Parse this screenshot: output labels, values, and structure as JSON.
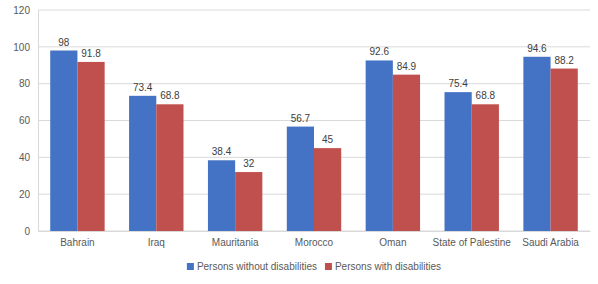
{
  "chart_data": {
    "type": "bar",
    "categories": [
      "Bahrain",
      "Iraq",
      "Mauritania",
      "Morocco",
      "Oman",
      "State of Palestine",
      "Saudi Arabia"
    ],
    "series": [
      {
        "name": "Persons without disabilities",
        "color": "#4472c4",
        "values": [
          98,
          73.4,
          38.4,
          56.7,
          92.6,
          75.4,
          94.6
        ]
      },
      {
        "name": "Persons with disabilities",
        "color": "#c0504d",
        "values": [
          91.8,
          68.8,
          32,
          45,
          84.9,
          68.8,
          88.2
        ]
      }
    ],
    "ylim": [
      0,
      120
    ],
    "yticks": [
      0,
      20,
      40,
      60,
      80,
      100,
      120
    ],
    "grid": true,
    "data_labels": true,
    "legend": "bottom"
  }
}
